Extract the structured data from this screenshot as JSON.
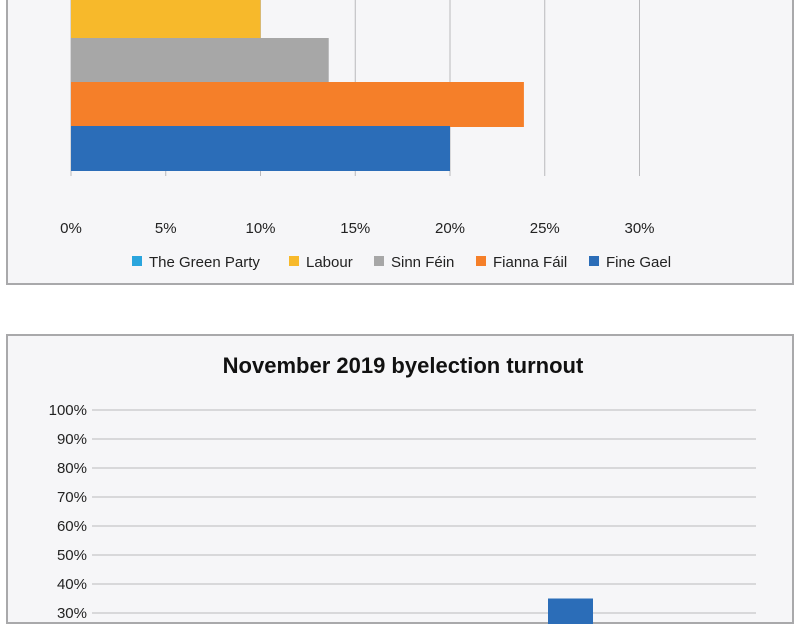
{
  "chart_data": [
    {
      "type": "bar",
      "orientation": "horizontal",
      "title": "",
      "xlim": [
        0,
        0.3
      ],
      "x_ticks": [
        "0%",
        "5%",
        "10%",
        "15%",
        "20%",
        "25%",
        "30%"
      ],
      "grid": true,
      "legend_position": "bottom",
      "series": [
        {
          "name": "The Green Party",
          "value": null,
          "color": "#2aa5dd"
        },
        {
          "name": "Labour",
          "value": 0.1,
          "color": "#f7b92b"
        },
        {
          "name": "Sinn Féin",
          "value": 0.136,
          "color": "#a7a7a7"
        },
        {
          "name": "Fianna Fáil",
          "value": 0.239,
          "color": "#f57f29"
        },
        {
          "name": "Fine Gael",
          "value": 0.2,
          "color": "#2b6db8"
        }
      ]
    },
    {
      "type": "bar",
      "title": "November 2019 byelection turnout",
      "ylim": [
        0,
        1.0
      ],
      "y_ticks": [
        "100%",
        "90%",
        "80%",
        "70%",
        "60%",
        "50%",
        "40%",
        "30%"
      ],
      "grid": true,
      "series": [
        {
          "name": "",
          "value": 0.35,
          "color": "#2b6db8"
        }
      ]
    }
  ]
}
